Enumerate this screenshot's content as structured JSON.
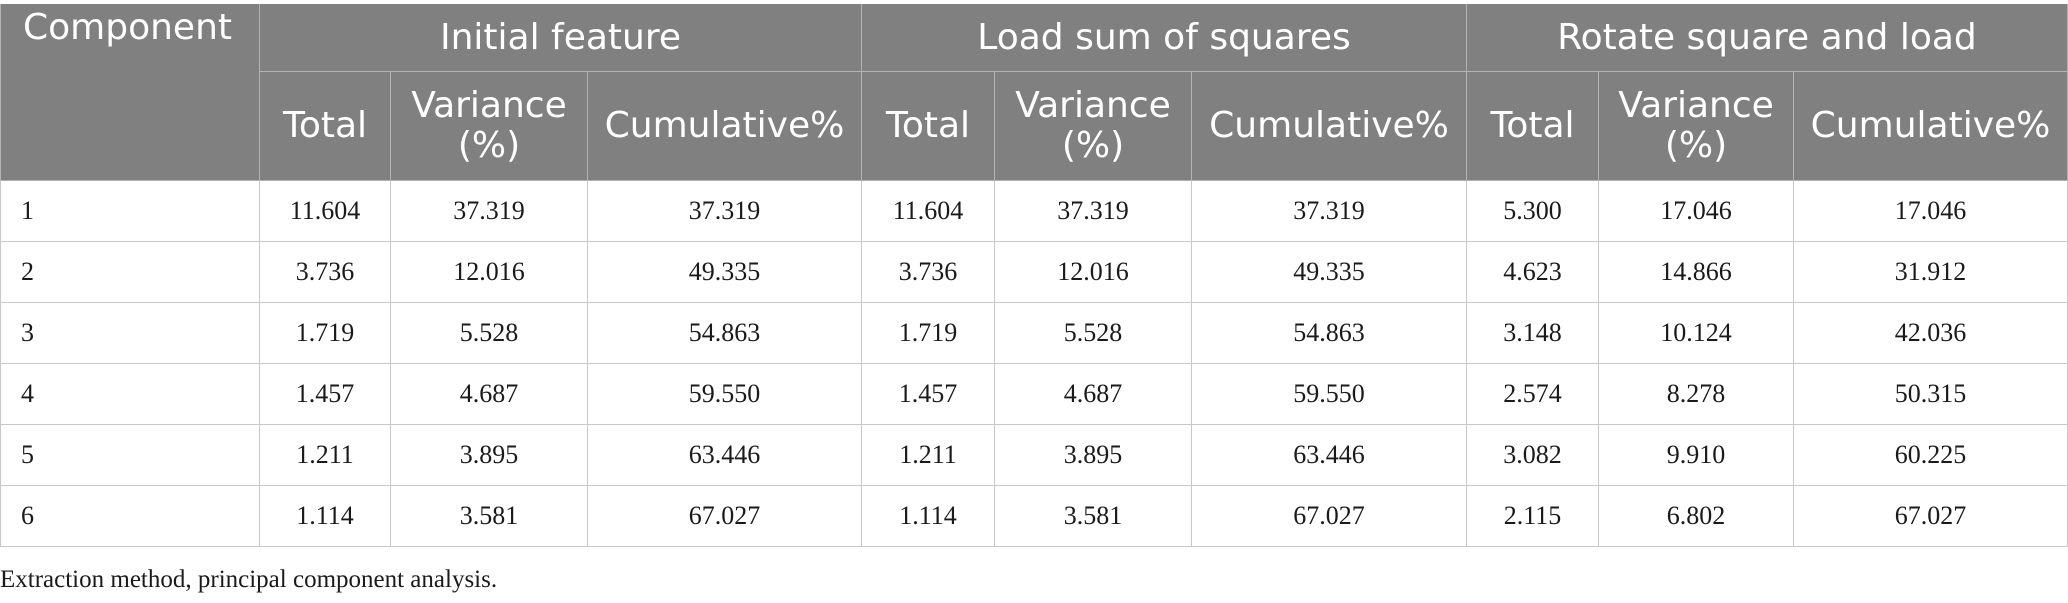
{
  "table": {
    "component_header": "Component",
    "groups": [
      "Initial feature",
      "Load sum of squares",
      "Rotate square and load"
    ],
    "subheaders": {
      "total": "Total",
      "variance_line1": "Variance",
      "variance_line2": "(%)",
      "cumulative": "Cumulative%"
    },
    "rows": [
      [
        "1",
        "11.604",
        "37.319",
        "37.319",
        "11.604",
        "37.319",
        "37.319",
        "5.300",
        "17.046",
        "17.046"
      ],
      [
        "2",
        "3.736",
        "12.016",
        "49.335",
        "3.736",
        "12.016",
        "49.335",
        "4.623",
        "14.866",
        "31.912"
      ],
      [
        "3",
        "1.719",
        "5.528",
        "54.863",
        "1.719",
        "5.528",
        "54.863",
        "3.148",
        "10.124",
        "42.036"
      ],
      [
        "4",
        "1.457",
        "4.687",
        "59.550",
        "1.457",
        "4.687",
        "59.550",
        "2.574",
        "8.278",
        "50.315"
      ],
      [
        "5",
        "1.211",
        "3.895",
        "63.446",
        "1.211",
        "3.895",
        "63.446",
        "3.082",
        "9.910",
        "60.225"
      ],
      [
        "6",
        "1.114",
        "3.581",
        "67.027",
        "1.114",
        "3.581",
        "67.027",
        "2.115",
        "6.802",
        "67.027"
      ]
    ]
  },
  "footnote": "Extraction method, principal component analysis."
}
